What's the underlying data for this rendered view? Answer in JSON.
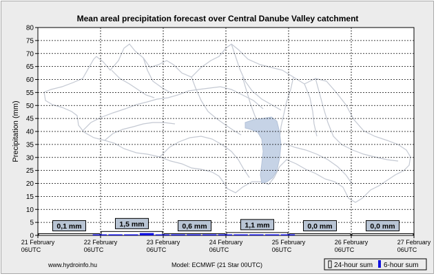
{
  "chart_data": {
    "type": "bar",
    "title": "Mean areal precipitation forecast over Central Danube Valley catchment",
    "ylabel": "Precipitation (mm)",
    "xlabel": "",
    "ylim": [
      0,
      80
    ],
    "y_ticks": [
      0,
      5,
      10,
      15,
      20,
      25,
      30,
      35,
      40,
      45,
      50,
      55,
      60,
      65,
      70,
      75,
      80
    ],
    "x_ticks": [
      {
        "day": "21 February",
        "hour": "06UTC"
      },
      {
        "day": "22 February",
        "hour": "06UTC"
      },
      {
        "day": "23 February",
        "hour": "06UTC"
      },
      {
        "day": "24 February",
        "hour": "06UTC"
      },
      {
        "day": "25 February",
        "hour": "06UTC"
      },
      {
        "day": "26 February",
        "hour": "06UTC"
      },
      {
        "day": "27 February",
        "hour": "06UTC"
      }
    ],
    "grid": true,
    "legend_position": "bottom-right",
    "daily_sum_labels": [
      "0,1 mm",
      "1,5 mm",
      "0,6 mm",
      "1,1 mm",
      "0,0 mm",
      "0,0 mm"
    ],
    "series": [
      {
        "name": "24-hour sum",
        "values": [
          0.1,
          1.5,
          0.6,
          1.1,
          0.0,
          0.0
        ]
      },
      {
        "name": "6-hour sum",
        "values": [
          0.0,
          0.0,
          0.0,
          0.1,
          0.1,
          0.2,
          0.9,
          0.3,
          0.2,
          0.2,
          0.1,
          0.1,
          0.1,
          0.4,
          0.4,
          0.2,
          0.0,
          0.0,
          0.0,
          0.0,
          0.0,
          0.0,
          0.0,
          0.0
        ]
      }
    ],
    "colors": {
      "six_hour": "#1010e0",
      "day_bar": "#ffffff",
      "label_box": "#b8c4d4",
      "map_lines": "#c3c8d2",
      "lake": "#c6d3e6"
    }
  },
  "footer": {
    "website": "www.hydroinfo.hu",
    "model": "Model:  ECMWF (21  Star 00UTC)"
  }
}
